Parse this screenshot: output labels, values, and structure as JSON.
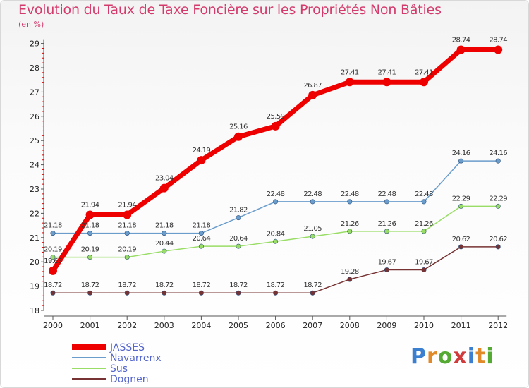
{
  "chart_data": {
    "type": "line",
    "title": "Evolution du Taux de Taxe Foncière sur les Propriétés Non Bâties",
    "ylabel": "(en %)",
    "xlabel": "",
    "ylim": [
      18,
      29
    ],
    "yticks": [
      "18",
      "19",
      "20",
      "21",
      "22",
      "23",
      "24",
      "25",
      "26",
      "27",
      "28",
      "29"
    ],
    "categories": [
      "2000",
      "2001",
      "2002",
      "2003",
      "2004",
      "2005",
      "2006",
      "2007",
      "2008",
      "2009",
      "2010",
      "2011",
      "2012"
    ],
    "series": [
      {
        "name": "JASSES",
        "color": "#ee0000",
        "labels": [
          "19.63",
          "21.94",
          "21.94",
          "23.04",
          "24.19",
          "25.16",
          "25.59",
          "26.87",
          "27.41",
          "27.41",
          "27.41",
          "28.74",
          "28.74"
        ],
        "values": [
          19.63,
          21.94,
          21.94,
          23.04,
          24.19,
          25.16,
          25.59,
          26.87,
          27.41,
          27.41,
          27.41,
          28.74,
          28.74
        ]
      },
      {
        "name": "Navarrenx",
        "color": "#6a9ccc",
        "labels": [
          "21.18",
          "21.18",
          "21.18",
          "21.18",
          "21.18",
          "21.82",
          "22.48",
          "22.48",
          "22.48",
          "22.48",
          "22.48",
          "24.16",
          "24.16"
        ],
        "values": [
          21.18,
          21.18,
          21.18,
          21.18,
          21.18,
          21.82,
          22.48,
          22.48,
          22.48,
          22.48,
          22.48,
          24.16,
          24.16
        ]
      },
      {
        "name": "Sus",
        "color": "#99dd66",
        "labels": [
          "20.19",
          "20.19",
          "20.19",
          "20.44",
          "20.64",
          "20.64",
          "20.84",
          "21.05",
          "21.26",
          "21.26",
          "21.26",
          "22.29",
          "22.29"
        ],
        "values": [
          20.19,
          20.19,
          20.19,
          20.44,
          20.64,
          20.64,
          20.84,
          21.05,
          21.26,
          21.26,
          21.26,
          22.29,
          22.29
        ]
      },
      {
        "name": "Dognen",
        "color": "#773333",
        "labels": [
          "18.72",
          "18.72",
          "18.72",
          "18.72",
          "18.72",
          "18.72",
          "18.72",
          "18.72",
          "19.28",
          "19.67",
          "19.67",
          "20.62",
          "20.62"
        ],
        "values": [
          18.72,
          18.72,
          18.72,
          18.72,
          18.72,
          18.72,
          18.72,
          18.72,
          19.28,
          19.67,
          19.67,
          20.62,
          20.62
        ]
      }
    ],
    "legend_position": "bottom-left",
    "grid": false
  },
  "logo": {
    "text": "Proxiti",
    "letters": [
      "P",
      "r",
      "o",
      "x",
      "i",
      "t",
      "i"
    ],
    "colors": [
      "#3a7fd0",
      "#e08a2a",
      "#55aa33",
      "#d03b3b",
      "#3a7fd0",
      "#e08a2a",
      "#55aa33"
    ]
  }
}
